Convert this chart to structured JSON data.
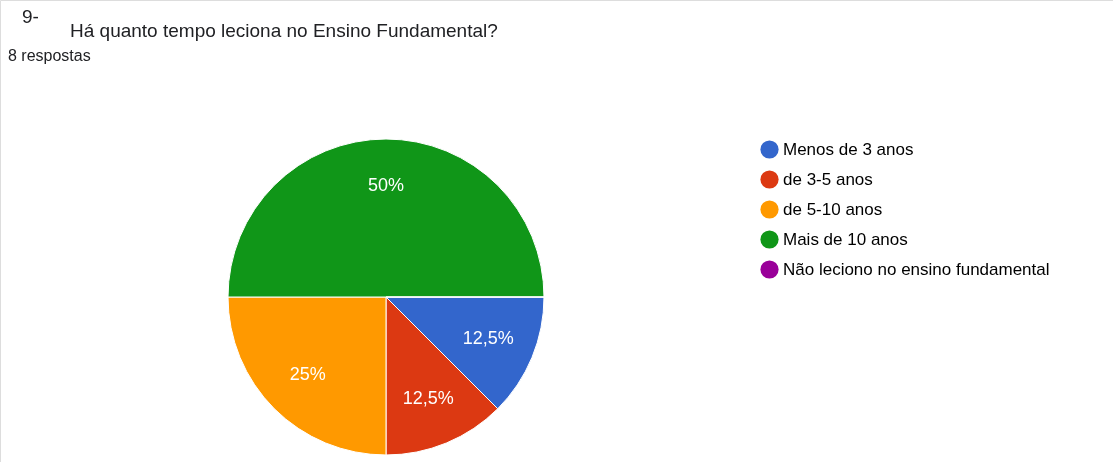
{
  "chart_data": {
    "type": "pie",
    "title": "Há quanto tempo leciona no Ensino Fundamental?",
    "subtitle": "8 respostas",
    "annotations": [
      "9-"
    ],
    "categories": [
      "Menos de 3 anos",
      "de 3-5 anos",
      "de 5-10 anos",
      "Mais de 10 anos",
      "Não leciono no ensino fundamental"
    ],
    "values": [
      12.5,
      12.5,
      25,
      50,
      0
    ],
    "colors": [
      "#3366cc",
      "#dc3912",
      "#ff9900",
      "#109618",
      "#990099"
    ],
    "value_labels": [
      "12,5%",
      "12,5%",
      "25%",
      "50%",
      null
    ],
    "legend": "right"
  }
}
